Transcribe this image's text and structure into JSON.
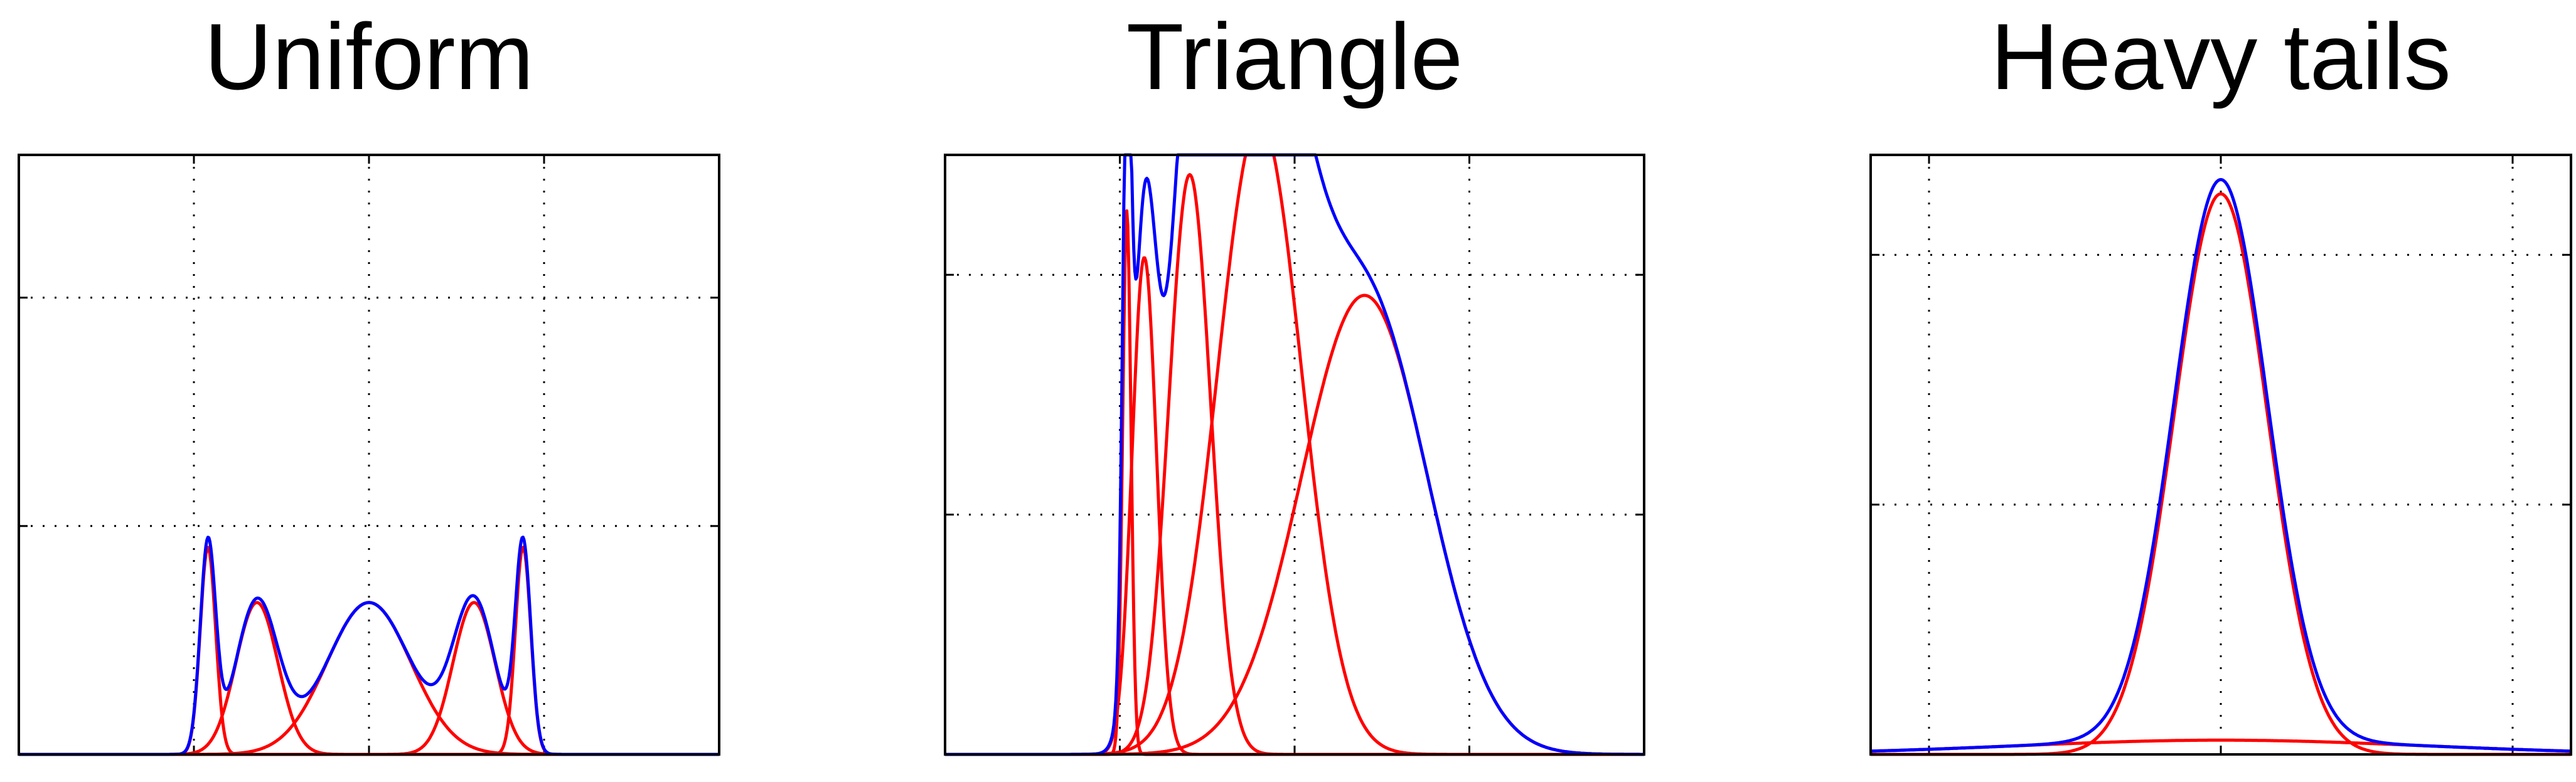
{
  "chart_data": [
    {
      "type": "line",
      "title": "Uniform",
      "xlabel": "",
      "ylabel": "",
      "xlim": [
        -5,
        5
      ],
      "ylim": [
        0,
        1.05
      ],
      "xticks": [
        -2.5,
        0,
        2.5
      ],
      "yticks": [
        0.4,
        0.8
      ],
      "grid": true,
      "legend": "none",
      "colors": {
        "total": "#0000ff",
        "components": "#ff0000"
      },
      "components": [
        {
          "weight": 0.1,
          "mean": -2.3,
          "sd": 0.11
        },
        {
          "weight": 0.2,
          "mean": -1.6,
          "sd": 0.3
        },
        {
          "weight": 0.4,
          "mean": 0,
          "sd": 0.6
        },
        {
          "weight": 0.2,
          "mean": 1.5,
          "sd": 0.3
        },
        {
          "weight": 0.1,
          "mean": 2.2,
          "sd": 0.11
        }
      ]
    },
    {
      "type": "line",
      "title": "Triangle",
      "xlabel": "",
      "ylabel": "",
      "xlim": [
        -0.4,
        1.6
      ],
      "ylim": [
        0,
        1.1
      ],
      "xticks": [
        0.1,
        0.6,
        1.1
      ],
      "yticks": [
        0.44,
        0.88
      ],
      "grid": true,
      "legend": "none",
      "colors": {
        "total": "#0000ff",
        "components": "#ff0000"
      },
      "components": [
        {
          "weight": 0.03,
          "mean": 0.12,
          "sd": 0.012
        },
        {
          "weight": 0.08,
          "mean": 0.17,
          "sd": 0.035
        },
        {
          "weight": 0.16,
          "mean": 0.3,
          "sd": 0.06
        },
        {
          "weight": 0.35,
          "mean": 0.5,
          "sd": 0.12
        },
        {
          "weight": 0.38,
          "mean": 0.8,
          "sd": 0.18
        }
      ]
    },
    {
      "type": "line",
      "title": "Heavy tails",
      "xlabel": "",
      "ylabel": "",
      "xlim": [
        -6,
        6
      ],
      "ylim": [
        0,
        0.48
      ],
      "xticks": [
        -5,
        0,
        5
      ],
      "yticks": [
        0.2,
        0.4
      ],
      "grid": true,
      "legend": "none",
      "colors": {
        "total": "#0000ff",
        "components": "#ff0000"
      },
      "components": [
        {
          "weight": 0.9,
          "mean": 0,
          "sd": 0.8
        },
        {
          "weight": 0.1,
          "mean": 0,
          "sd": 3.5
        }
      ]
    }
  ]
}
